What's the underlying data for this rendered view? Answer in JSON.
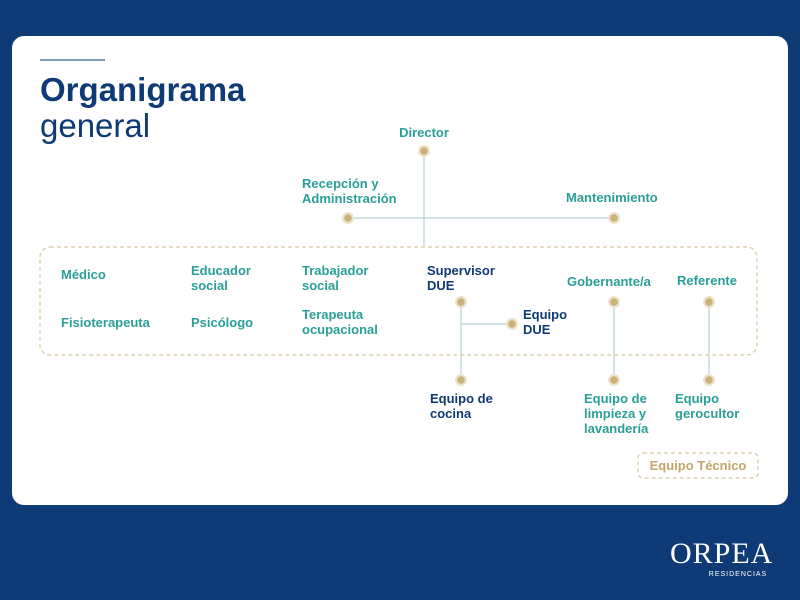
{
  "header": {
    "title": "Organigrama",
    "subtitle": "general"
  },
  "nodes": [
    {
      "lines": [
        "Director"
      ]
    },
    {
      "lines": [
        "Recepción y",
        "Administración"
      ]
    },
    {
      "lines": [
        "Mantenimiento"
      ]
    },
    {
      "lines": [
        "Médico"
      ]
    },
    {
      "lines": [
        "Fisioterapeuta"
      ]
    },
    {
      "lines": [
        "Educador",
        "social"
      ]
    },
    {
      "lines": [
        "Psicólogo"
      ]
    },
    {
      "lines": [
        "Trabajador",
        "social"
      ]
    },
    {
      "lines": [
        "Terapeuta",
        "ocupacional"
      ]
    },
    {
      "lines": [
        "Supervisor",
        "DUE"
      ]
    },
    {
      "lines": [
        "Equipo",
        "DUE"
      ]
    },
    {
      "lines": [
        "Gobernante/a"
      ]
    },
    {
      "lines": [
        "Referente"
      ]
    },
    {
      "lines": [
        "Equipo de",
        "cocina"
      ]
    },
    {
      "lines": [
        "Equipo de",
        "limpieza y",
        "lavandería"
      ]
    },
    {
      "lines": [
        "Equipo",
        "gerocultor"
      ]
    }
  ],
  "legend": "Equipo Técnico",
  "logo": {
    "brand": "ORPEA",
    "tagline": "RESIDENCIAS"
  }
}
